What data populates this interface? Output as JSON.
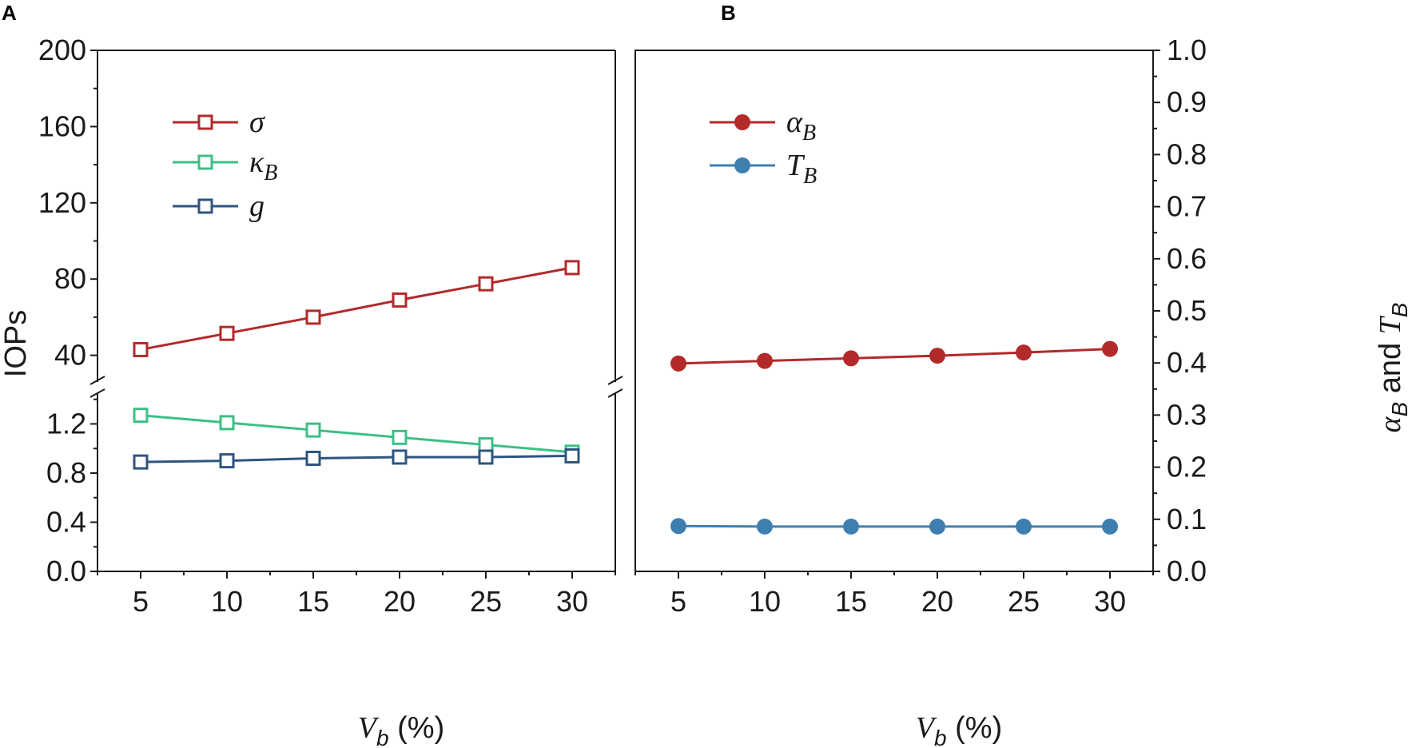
{
  "chart_data": [
    {
      "panel": "A",
      "type": "line",
      "ylabel": "IOPs",
      "xlabel": {
        "main": "V",
        "sub": "b",
        "rest": " (%)"
      },
      "x": [
        5,
        10,
        15,
        20,
        25,
        30
      ],
      "xticks": [
        "5",
        "10",
        "15",
        "20",
        "25",
        "30"
      ],
      "xlim": [
        2.5,
        32.5
      ],
      "broken_y_axis": true,
      "upper_ylim": [
        26,
        200
      ],
      "upper_yticks": [
        "40",
        "80",
        "120",
        "160",
        "200"
      ],
      "lower_ylim": [
        0,
        1.45
      ],
      "lower_yticks": [
        "0.0",
        "0.4",
        "0.8",
        "1.2"
      ],
      "series": [
        {
          "name": "σ",
          "sub": "",
          "segment": "upper",
          "marker": "open-square",
          "color": "#b22a2a",
          "values": [
            43,
            51.5,
            60,
            69,
            77.5,
            86
          ]
        },
        {
          "name": "κ",
          "sub": "B",
          "segment": "lower",
          "marker": "open-square",
          "color": "#3ebf86",
          "values": [
            1.27,
            1.21,
            1.15,
            1.09,
            1.03,
            0.97
          ]
        },
        {
          "name": "g",
          "sub": "",
          "segment": "lower",
          "marker": "open-square",
          "color": "#2e5580",
          "values": [
            0.89,
            0.9,
            0.92,
            0.93,
            0.93,
            0.94
          ]
        }
      ],
      "legend_position": "upper-left"
    },
    {
      "panel": "B",
      "type": "line",
      "ylabel": {
        "a": "α",
        "a_sub": "B",
        "and": " and ",
        "t": "T",
        "t_sub": "B"
      },
      "xlabel": {
        "main": "V",
        "sub": "b",
        "rest": " (%)"
      },
      "x": [
        5,
        10,
        15,
        20,
        25,
        30
      ],
      "xticks": [
        "5",
        "10",
        "15",
        "20",
        "25",
        "30"
      ],
      "xlim": [
        2.5,
        32.5
      ],
      "ylim": [
        0.0,
        1.0
      ],
      "yticks": [
        "0.0",
        "0.1",
        "0.2",
        "0.3",
        "0.4",
        "0.5",
        "0.6",
        "0.7",
        "0.8",
        "0.9",
        "1.0"
      ],
      "y_axis_side": "right",
      "series": [
        {
          "name": "α",
          "sub": "B",
          "marker": "filled-circle",
          "color": "#b22a2a",
          "values": [
            0.399,
            0.404,
            0.409,
            0.414,
            0.42,
            0.427
          ]
        },
        {
          "name": "T",
          "sub": "B",
          "marker": "filled-circle",
          "color": "#3f7fb0",
          "values": [
            0.087,
            0.086,
            0.086,
            0.086,
            0.086,
            0.086
          ]
        }
      ],
      "legend_position": "upper-left"
    }
  ]
}
